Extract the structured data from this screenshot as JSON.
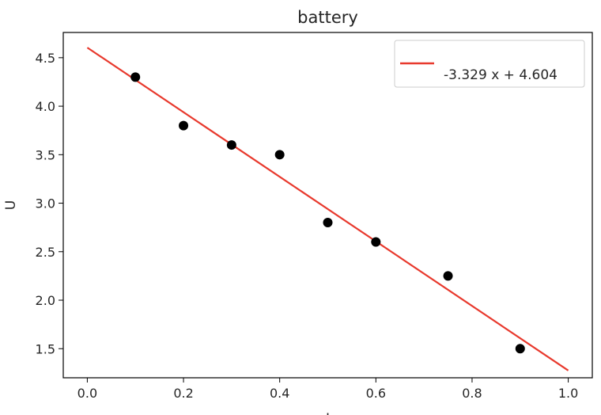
{
  "chart_data": {
    "type": "scatter",
    "title": "battery",
    "xlabel": "I",
    "ylabel": "U",
    "xlim": [
      -0.05,
      1.05
    ],
    "ylim": [
      1.2,
      4.76
    ],
    "xticks": [
      0.0,
      0.2,
      0.4,
      0.6,
      0.8,
      1.0
    ],
    "xtick_labels": [
      "0.0",
      "0.2",
      "0.4",
      "0.6",
      "0.8",
      "1.0"
    ],
    "yticks": [
      1.5,
      2.0,
      2.5,
      3.0,
      3.5,
      4.0,
      4.5
    ],
    "ytick_labels": [
      "1.5",
      "2.0",
      "2.5",
      "3.0",
      "3.5",
      "4.0",
      "4.5"
    ],
    "grid": false,
    "legend_position": "top-right",
    "series": [
      {
        "type": "scatter",
        "color": "#000000",
        "points": [
          {
            "x": 0.1,
            "y": 4.3
          },
          {
            "x": 0.2,
            "y": 3.8
          },
          {
            "x": 0.3,
            "y": 3.6
          },
          {
            "x": 0.4,
            "y": 3.5
          },
          {
            "x": 0.5,
            "y": 2.8
          },
          {
            "x": 0.6,
            "y": 2.6
          },
          {
            "x": 0.75,
            "y": 2.25
          },
          {
            "x": 0.9,
            "y": 1.5
          }
        ]
      },
      {
        "type": "line",
        "name": "-3.329 x + 4.604",
        "color": "#e8392d",
        "slope": -3.329,
        "intercept": 4.604,
        "x": [
          0.0,
          1.0
        ]
      }
    ]
  }
}
